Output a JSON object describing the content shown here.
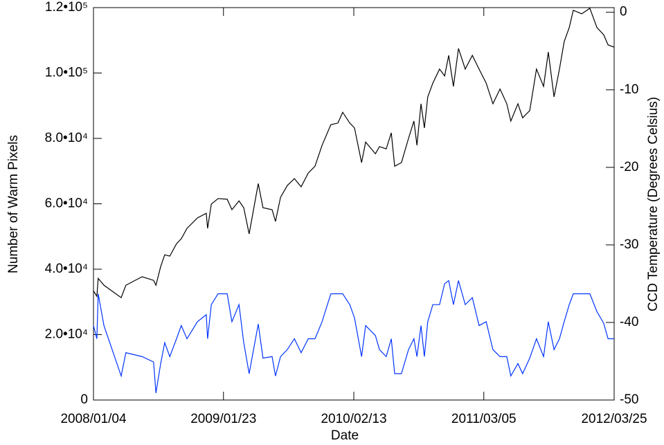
{
  "chart_data": {
    "type": "line",
    "x_label": "Date",
    "y_label": "Number of Warm Pixels",
    "y2_label": "CCD Temperature (Degrees Celsius)",
    "x": [
      "2008/01/04",
      "2008/01/14",
      "2008/01/18",
      "2008/02/04",
      "2008/03/26",
      "2008/04/09",
      "2008/05/27",
      "2008/06/30",
      "2008/07/07",
      "2008/07/21",
      "2008/08/02",
      "2008/08/17",
      "2008/09/06",
      "2008/09/20",
      "2008/10/07",
      "2008/11/07",
      "2008/12/03",
      "2008/12/07",
      "2008/12/18",
      "2009/01/07",
      "2009/02/03",
      "2009/02/17",
      "2009/03/10",
      "2009/03/24",
      "2009/04/09",
      "2009/05/06",
      "2009/05/20",
      "2009/06/16",
      "2009/06/26",
      "2009/07/11",
      "2009/07/31",
      "2009/08/21",
      "2009/09/10",
      "2009/10/01",
      "2009/10/21",
      "2009/11/11",
      "2009/12/07",
      "2009/12/28",
      "2010/01/11",
      "2010/02/01",
      "2010/02/15",
      "2010/03/08",
      "2010/03/20",
      "2010/04/18",
      "2010/04/30",
      "2010/05/20",
      "2010/06/04",
      "2010/06/14",
      "2010/07/04",
      "2010/07/25",
      "2010/08/10",
      "2010/08/19",
      "2010/08/31",
      "2010/09/10",
      "2010/09/20",
      "2010/10/05",
      "2010/10/25",
      "2010/11/09",
      "2010/11/21",
      "2010/12/05",
      "2010/12/20",
      "2011/01/09",
      "2011/01/30",
      "2011/02/19",
      "2011/03/12",
      "2011/04/01",
      "2011/04/22",
      "2011/05/12",
      "2011/05/24",
      "2011/06/14",
      "2011/06/28",
      "2011/07/19",
      "2011/08/08",
      "2011/08/29",
      "2011/09/12",
      "2011/09/29",
      "2011/10/15",
      "2011/10/29",
      "2011/11/13",
      "2011/11/25",
      "2011/12/20",
      "2012/01/13",
      "2012/02/03",
      "2012/02/23",
      "2012/03/07",
      "2012/03/25"
    ],
    "series": [
      {
        "color": "#000000",
        "values": [
          33400,
          31700,
          37200,
          35100,
          31300,
          35100,
          37700,
          36600,
          35100,
          40800,
          44400,
          44000,
          47800,
          49300,
          52500,
          55700,
          57100,
          52500,
          59900,
          61600,
          61400,
          58200,
          60900,
          58800,
          50800,
          66200,
          58800,
          58200,
          54600,
          62000,
          65600,
          67700,
          65200,
          69400,
          71500,
          77900,
          84200,
          84700,
          88000,
          84700,
          83200,
          72600,
          78900,
          75300,
          77500,
          76800,
          81700,
          71500,
          72600,
          80000,
          85300,
          77900,
          90600,
          83200,
          92700,
          96900,
          101200,
          99100,
          105400,
          95900,
          107500,
          101200,
          105400,
          101200,
          96900,
          90600,
          95100,
          90600,
          85300,
          90600,
          86300,
          88500,
          101200,
          95900,
          106400,
          92700,
          101200,
          109600,
          113900,
          119200,
          118100,
          119800,
          113900,
          111700,
          108600,
          107900
        ]
      },
      {
        "color": "#0033ff",
        "axis": "y2",
        "values": [
          -40.4,
          -42.1,
          -36.3,
          -40.4,
          -46.9,
          -43.9,
          -44.4,
          -45.1,
          -49.1,
          -45.3,
          -42.6,
          -44.4,
          -42.1,
          -40.4,
          -42.1,
          -39.9,
          -39.0,
          -42.1,
          -37.7,
          -36.3,
          -36.3,
          -39.9,
          -37.7,
          -42.6,
          -46.6,
          -40.2,
          -44.6,
          -44.4,
          -46.9,
          -44.4,
          -43.5,
          -42.1,
          -43.9,
          -42.1,
          -42.1,
          -39.9,
          -36.3,
          -36.3,
          -36.3,
          -37.7,
          -39.4,
          -44.4,
          -40.4,
          -41.7,
          -43.5,
          -44.4,
          -42.1,
          -46.6,
          -46.6,
          -43.5,
          -42.1,
          -44.4,
          -40.4,
          -44.4,
          -39.9,
          -37.7,
          -37.7,
          -35.0,
          -34.6,
          -37.7,
          -34.6,
          -37.7,
          -36.8,
          -40.4,
          -39.9,
          -43.5,
          -44.4,
          -44.4,
          -46.9,
          -45.3,
          -46.6,
          -44.6,
          -42.1,
          -44.4,
          -39.9,
          -43.5,
          -42.1,
          -39.9,
          -37.7,
          -36.3,
          -36.3,
          -36.3,
          -38.6,
          -40.1,
          -42.1,
          -42.1
        ]
      }
    ],
    "xlim": [
      "2008/01/04",
      "2012/03/25"
    ],
    "xticks": [
      "2008/01/04",
      "2009/01/23",
      "2010/02/13",
      "2011/03/05",
      "2012/03/25"
    ],
    "ylim": [
      0,
      120000
    ],
    "yticks": [
      0,
      {
        "value": 20000,
        "label": "2.0•10⁴"
      },
      {
        "value": 40000,
        "label": "4.0•10⁴"
      },
      {
        "value": 60000,
        "label": "6.0•10⁴"
      },
      {
        "value": 80000,
        "label": "8.0•10⁴"
      },
      {
        "value": 100000,
        "label": "1.0•10⁵"
      },
      {
        "value": 120000,
        "label": "1.2•10⁵"
      }
    ],
    "y2lim": [
      -50,
      0.6
    ],
    "y2ticks": [
      -50,
      -40,
      -30,
      -20,
      -10,
      0
    ]
  }
}
